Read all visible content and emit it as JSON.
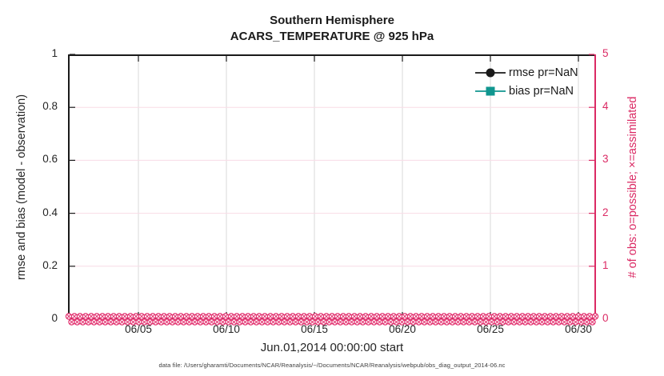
{
  "figure": {
    "title_line1": "Southern Hemisphere",
    "title_line2": "ACARS_TEMPERATURE @ 925 hPa",
    "xlabel": "Jun.01,2014 00:00:00 start",
    "footer": "data file: /Users/gharamti/Documents/NCAR/Reanalysis/~/Documents/NCAR/Reanalysis/webpub/obs_diag_output_2014-06.nc"
  },
  "legend": {
    "items": [
      {
        "label": "rmse pr=NaN",
        "marker": "circle",
        "color": "#1A1A1A"
      },
      {
        "label": "bias pr=NaN",
        "marker": "square",
        "color": "#10968F"
      }
    ]
  },
  "colors": {
    "accent_pink": "#DB2A64",
    "marker_pink": "#E23370",
    "teal": "#10968F",
    "dark": "#1A1A1A",
    "tick_text": "#262626",
    "grid_gray": "#DADADA",
    "grid_pink": "#F8DCE6"
  },
  "chart_data": {
    "type": "line",
    "title": "Southern Hemisphere",
    "subtitle": "ACARS_TEMPERATURE @ 925 hPa",
    "xlabel": "Jun.01,2014 00:00:00 start",
    "x_axis": {
      "start_label": "Jun.01,2014 00:00:00",
      "span_days": 30,
      "tick_labels": [
        "06/05",
        "06/10",
        "06/15",
        "06/20",
        "06/25",
        "06/30"
      ],
      "tick_day_offsets": [
        4,
        9,
        14,
        19,
        24,
        29
      ],
      "grid": true
    },
    "left_axis": {
      "label": "rmse and bias (model - observation)",
      "range": [
        0,
        1
      ],
      "tick_labels": [
        "0",
        "0.2",
        "0.4",
        "0.6",
        "0.8",
        "1"
      ],
      "tick_values": [
        0,
        0.2,
        0.4,
        0.6,
        0.8,
        1
      ]
    },
    "right_axis": {
      "label": "# of obs: o=possible; ×=assimilated",
      "range": [
        0,
        5
      ],
      "tick_labels": [
        "0",
        "1",
        "2",
        "3",
        "4",
        "5"
      ],
      "tick_values": [
        0,
        1,
        2,
        3,
        4,
        5
      ],
      "grid": true
    },
    "series": [
      {
        "name": "rmse pr=NaN",
        "marker": "circle",
        "color": "#1A1A1A",
        "values": "NaN (no curve plotted)"
      },
      {
        "name": "bias pr=NaN",
        "marker": "square",
        "color": "#10968F",
        "values": "NaN (no curve plotted)"
      },
      {
        "name": "# of obs possible (o)",
        "marker": "o",
        "color": "#E23370",
        "constant_value": 0,
        "axis": "right"
      },
      {
        "name": "# of obs assimilated (×)",
        "marker": "×",
        "color": "#E23370",
        "constant_value": 0,
        "axis": "right"
      }
    ]
  }
}
